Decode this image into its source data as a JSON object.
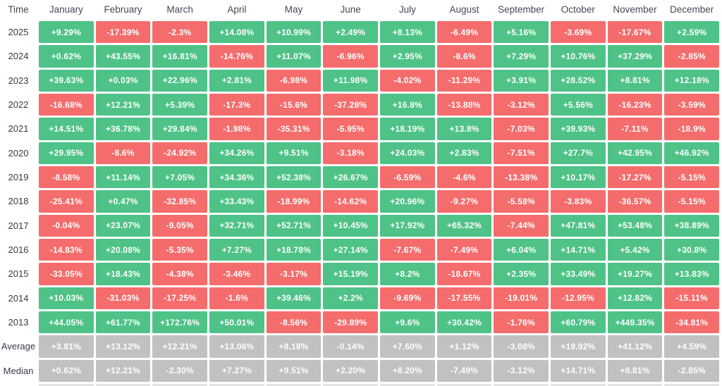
{
  "colors": {
    "positive": "#4ec287",
    "negative": "#f56c6c",
    "summary": "#c1c1c1",
    "header_text": "#434a54",
    "cell_text": "#fdfefe"
  },
  "chart_data": {
    "type": "heatmap",
    "description": "Monthly percentage returns by year with Average and Median summary rows; green = positive month, red = negative month, gray = summary rows",
    "corner_label": "Time",
    "columns": [
      "January",
      "February",
      "March",
      "April",
      "May",
      "June",
      "July",
      "August",
      "September",
      "October",
      "November",
      "December"
    ],
    "rows": [
      {
        "label": "2025",
        "summary": false,
        "display": [
          "+9.29%",
          "-17.39%",
          "-2.3%",
          "+14.08%",
          "+10.99%",
          "+2.49%",
          "+8.13%",
          "-6.49%",
          "+5.16%",
          "-3.69%",
          "-17.67%",
          "+2.59%"
        ]
      },
      {
        "label": "2024",
        "summary": false,
        "display": [
          "+0.62%",
          "+43.55%",
          "+16.81%",
          "-14.76%",
          "+11.07%",
          "-6.96%",
          "+2.95%",
          "-8.6%",
          "+7.29%",
          "+10.76%",
          "+37.29%",
          "-2.85%"
        ]
      },
      {
        "label": "2023",
        "summary": false,
        "display": [
          "+39.63%",
          "+0.03%",
          "+22.96%",
          "+2.81%",
          "-6.98%",
          "+11.98%",
          "-4.02%",
          "-11.29%",
          "+3.91%",
          "+28.52%",
          "+8.81%",
          "+12.18%"
        ]
      },
      {
        "label": "2022",
        "summary": false,
        "display": [
          "-16.68%",
          "+12.21%",
          "+5.39%",
          "-17.3%",
          "-15.6%",
          "-37.28%",
          "+16.8%",
          "-13.88%",
          "-3.12%",
          "+5.56%",
          "-16.23%",
          "-3.59%"
        ]
      },
      {
        "label": "2021",
        "summary": false,
        "display": [
          "+14.51%",
          "+36.78%",
          "+29.84%",
          "-1.98%",
          "-35.31%",
          "-5.95%",
          "+18.19%",
          "+13.8%",
          "-7.03%",
          "+39.93%",
          "-7.11%",
          "-18.9%"
        ]
      },
      {
        "label": "2020",
        "summary": false,
        "display": [
          "+29.95%",
          "-8.6%",
          "-24.92%",
          "+34.26%",
          "+9.51%",
          "-3.18%",
          "+24.03%",
          "+2.83%",
          "-7.51%",
          "+27.7%",
          "+42.95%",
          "+46.92%"
        ]
      },
      {
        "label": "2019",
        "summary": false,
        "display": [
          "-8.58%",
          "+11.14%",
          "+7.05%",
          "+34.36%",
          "+52.38%",
          "+26.67%",
          "-6.59%",
          "-4.6%",
          "-13.38%",
          "+10.17%",
          "-17.27%",
          "-5.15%"
        ]
      },
      {
        "label": "2018",
        "summary": false,
        "display": [
          "-25.41%",
          "+0.47%",
          "-32.85%",
          "+33.43%",
          "-18.99%",
          "-14.62%",
          "+20.96%",
          "-9.27%",
          "-5.58%",
          "-3.83%",
          "-36.57%",
          "-5.15%"
        ]
      },
      {
        "label": "2017",
        "summary": false,
        "display": [
          "-0.04%",
          "+23.07%",
          "-9.05%",
          "+32.71%",
          "+52.71%",
          "+10.45%",
          "+17.92%",
          "+65.32%",
          "-7.44%",
          "+47.81%",
          "+53.48%",
          "+38.89%"
        ]
      },
      {
        "label": "2016",
        "summary": false,
        "display": [
          "-14.83%",
          "+20.08%",
          "-5.35%",
          "+7.27%",
          "+18.78%",
          "+27.14%",
          "-7.67%",
          "-7.49%",
          "+6.04%",
          "+14.71%",
          "+5.42%",
          "+30.8%"
        ]
      },
      {
        "label": "2015",
        "summary": false,
        "display": [
          "-33.05%",
          "+18.43%",
          "-4.38%",
          "-3.46%",
          "-3.17%",
          "+15.19%",
          "+8.2%",
          "-18.67%",
          "+2.35%",
          "+33.49%",
          "+19.27%",
          "+13.83%"
        ]
      },
      {
        "label": "2014",
        "summary": false,
        "display": [
          "+10.03%",
          "-31.03%",
          "-17.25%",
          "-1.6%",
          "+39.46%",
          "+2.2%",
          "-9.69%",
          "-17.55%",
          "-19.01%",
          "-12.95%",
          "+12.82%",
          "-15.11%"
        ]
      },
      {
        "label": "2013",
        "summary": false,
        "display": [
          "+44.05%",
          "+61.77%",
          "+172.76%",
          "+50.01%",
          "-8.56%",
          "-29.89%",
          "+9.6%",
          "+30.42%",
          "-1.76%",
          "+60.79%",
          "+449.35%",
          "-34.81%"
        ]
      },
      {
        "label": "Average",
        "summary": true,
        "display": [
          "+3.81%",
          "+13.12%",
          "+12.21%",
          "+13.06%",
          "+8.18%",
          "-0.14%",
          "+7.60%",
          "+1.12%",
          "-3.08%",
          "+19.92%",
          "+41.12%",
          "+4.59%"
        ]
      },
      {
        "label": "Median",
        "summary": true,
        "display": [
          "+0.62%",
          "+12.21%",
          "-2.30%",
          "+7.27%",
          "+9.51%",
          "+2.20%",
          "+8.20%",
          "-7.49%",
          "-3.12%",
          "+14.71%",
          "+8.81%",
          "-2.85%"
        ]
      }
    ]
  }
}
